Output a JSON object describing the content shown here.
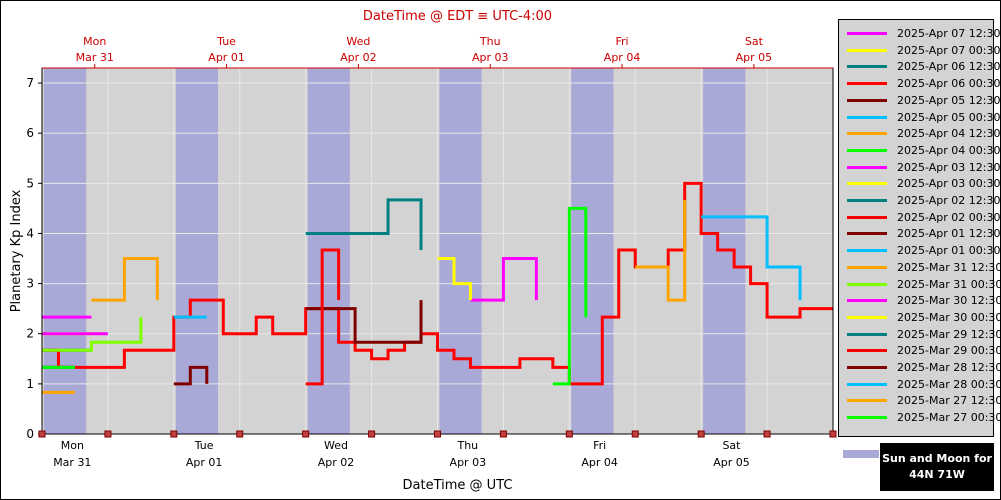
{
  "chart_data": {
    "type": "line",
    "title": "DateTime @ EDT ≡ UTC-4:00",
    "xlabel": "DateTime @ UTC",
    "ylabel": "Planetary Kp Index",
    "ylim": [
      0,
      7.3
    ],
    "yticks": [
      0,
      1,
      2,
      3,
      4,
      5,
      6,
      7
    ],
    "x_start": "2025-03-31 00:00",
    "x_end": "2025-04-06 00:00",
    "grid": true,
    "legend_position": "right",
    "top_ticks": [
      {
        "day": "Mon",
        "date": "Mar 31"
      },
      {
        "day": "Tue",
        "date": "Apr 01"
      },
      {
        "day": "Wed",
        "date": "Apr 02"
      },
      {
        "day": "Thu",
        "date": "Apr 03"
      },
      {
        "day": "Fri",
        "date": "Apr 04"
      },
      {
        "day": "Sat",
        "date": "Apr 05"
      }
    ],
    "bottom_ticks": [
      {
        "day": "Mon",
        "date": "Mar 31"
      },
      {
        "day": "Tue",
        "date": "Apr 01"
      },
      {
        "day": "Wed",
        "date": "Apr 02"
      },
      {
        "day": "Thu",
        "date": "Apr 03"
      },
      {
        "day": "Fri",
        "date": "Apr 04"
      },
      {
        "day": "Sat",
        "date": "Apr 05"
      }
    ],
    "series": [
      {
        "name": "2025-Apr 07 12:30",
        "color": "#ff00ff",
        "x": [
          "2025-03-31 00:00",
          "2025-03-31 09:00"
        ],
        "y": [
          2.33,
          2.33
        ]
      },
      {
        "name": "2025-Apr 07 00:30",
        "color": "#ffff00",
        "x": [
          "2025-03-31 00:00",
          "2025-03-31 09:00"
        ],
        "y": [
          2.0,
          2.0
        ]
      },
      {
        "name": "2025-Apr 06 12:30",
        "color": "#008080",
        "x": [
          "2025-03-31 00:00",
          "2025-03-31 09:00"
        ],
        "y": [
          1.67,
          1.67
        ]
      },
      {
        "name": "2025-Apr 06 00:30",
        "color": "#ff0000",
        "x": [
          "2025-03-31 00:00",
          "2025-03-31 03:00",
          "2025-03-31 06:00",
          "2025-03-31 09:00",
          "2025-03-31 12:00",
          "2025-03-31 15:00",
          "2025-03-31 18:00",
          "2025-03-31 21:00",
          "2025-04-01 00:00",
          "2025-04-01 03:00",
          "2025-04-01 06:00",
          "2025-04-01 09:00",
          "2025-04-01 12:00",
          "2025-04-01 15:00",
          "2025-04-01 18:00",
          "2025-04-01 21:00",
          "2025-04-02 00:00",
          "2025-04-02 03:00",
          "2025-04-02 06:00",
          "2025-04-02 09:00",
          "2025-04-02 12:00",
          "2025-04-02 15:00",
          "2025-04-02 18:00",
          "2025-04-02 21:00",
          "2025-04-03 00:00",
          "2025-04-03 03:00",
          "2025-04-03 06:00",
          "2025-04-03 09:00",
          "2025-04-03 12:00",
          "2025-04-03 15:00",
          "2025-04-03 18:00",
          "2025-04-03 21:00",
          "2025-04-04 00:00",
          "2025-04-04 03:00",
          "2025-04-04 06:00",
          "2025-04-04 09:00",
          "2025-04-04 12:00",
          "2025-04-04 15:00",
          "2025-04-04 18:00",
          "2025-04-04 21:00",
          "2025-04-05 00:00",
          "2025-04-05 03:00",
          "2025-04-05 06:00",
          "2025-04-05 09:00",
          "2025-04-05 12:00",
          "2025-04-05 15:00",
          "2025-04-05 18:00",
          "2025-04-05 21:00",
          "2025-04-06 00:00"
        ],
        "y": [
          1.67,
          1.33,
          1.33,
          1.33,
          1.33,
          1.67,
          1.67,
          1.67,
          2.33,
          2.67,
          2.67,
          2.0,
          2.0,
          2.33,
          2.0,
          2.0,
          2.5,
          2.5,
          1.83,
          1.67,
          1.5,
          1.67,
          1.83,
          2.0,
          1.67,
          1.5,
          1.33,
          1.33,
          1.33,
          1.5,
          1.5,
          1.33,
          1.0,
          1.0,
          2.33,
          3.67,
          3.33,
          3.33,
          3.67,
          5.0,
          4.0,
          3.67,
          3.33,
          3.0,
          2.33,
          2.33,
          2.5,
          2.5,
          2.5
        ]
      },
      {
        "name": "2025-Apr 05 12:30",
        "color": "#800000",
        "x": [
          "2025-04-02 00:00",
          "2025-04-02 09:00",
          "2025-04-02 21:00"
        ],
        "y": [
          2.5,
          1.83,
          2.67
        ]
      },
      {
        "name": "2025-Apr 05 00:30",
        "color": "#00bfff",
        "x": [
          "2025-04-05 00:00",
          "2025-04-05 12:00",
          "2025-04-05 18:00"
        ],
        "y": [
          4.33,
          3.33,
          2.67
        ]
      },
      {
        "name": "2025-Apr 04 12:30",
        "color": "#ffa500",
        "x": [
          "2025-04-04 12:00",
          "2025-04-04 18:00",
          "2025-04-04 21:00"
        ],
        "y": [
          3.33,
          2.67,
          4.67
        ]
      },
      {
        "name": "2025-Apr 04 00:30",
        "color": "#00ff00",
        "x": [
          "2025-04-03 21:00",
          "2025-04-04 00:00",
          "2025-04-04 03:00"
        ],
        "y": [
          1.0,
          4.5,
          2.33
        ]
      },
      {
        "name": "2025-Apr 03 12:30",
        "color": "#ff00ff",
        "x": [
          "2025-04-03 06:00",
          "2025-04-03 12:00",
          "2025-04-03 18:00"
        ],
        "y": [
          2.67,
          3.5,
          2.67
        ]
      },
      {
        "name": "2025-Apr 03 00:30",
        "color": "#ffff00",
        "x": [
          "2025-04-03 00:00",
          "2025-04-03 03:00",
          "2025-04-03 06:00"
        ],
        "y": [
          3.5,
          3.0,
          2.67
        ]
      },
      {
        "name": "2025-Apr 02 12:30",
        "color": "#008080",
        "x": [
          "2025-04-02 00:00",
          "2025-04-02 15:00",
          "2025-04-02 21:00"
        ],
        "y": [
          4.0,
          4.67,
          3.67
        ]
      },
      {
        "name": "2025-Apr 02 00:30",
        "color": "#ff0000",
        "x": [
          "2025-04-02 00:00",
          "2025-04-02 03:00",
          "2025-04-02 06:00"
        ],
        "y": [
          1.0,
          3.67,
          2.67
        ]
      },
      {
        "name": "2025-Apr 01 12:30",
        "color": "#800000",
        "x": [
          "2025-04-01 00:00",
          "2025-04-01 03:00",
          "2025-04-01 06:00"
        ],
        "y": [
          1.0,
          1.33,
          1.0
        ]
      },
      {
        "name": "2025-Apr 01 00:30",
        "color": "#00bfff",
        "x": [
          "2025-04-01 00:00",
          "2025-04-01 06:00"
        ],
        "y": [
          2.33,
          2.33
        ]
      },
      {
        "name": "2025-Mar 31 12:30",
        "color": "#ffa500",
        "x": [
          "2025-03-31 09:00",
          "2025-03-31 15:00",
          "2025-03-31 21:00"
        ],
        "y": [
          2.67,
          3.5,
          2.67
        ]
      },
      {
        "name": "2025-Mar 31 00:30",
        "color": "#80ff00",
        "x": [
          "2025-03-31 00:00",
          "2025-03-31 09:00",
          "2025-03-31 18:00"
        ],
        "y": [
          1.67,
          1.83,
          2.33
        ]
      },
      {
        "name": "2025-Mar 30 12:30",
        "color": "#ff00ff",
        "x": [
          "2025-03-31 00:00",
          "2025-03-31 12:00"
        ],
        "y": [
          2.0,
          2.0
        ]
      },
      {
        "name": "2025-Mar 30 00:30",
        "color": "#ffff00",
        "x": [
          "2025-03-31 00:00",
          "2025-03-31 06:00"
        ],
        "y": [
          1.33,
          1.33
        ]
      },
      {
        "name": "2025-Mar 29 12:30",
        "color": "#008080",
        "x": [
          "2025-03-31 00:00",
          "2025-03-31 06:00"
        ],
        "y": [
          1.33,
          1.33
        ]
      },
      {
        "name": "2025-Mar 29 00:30",
        "color": "#ff0000",
        "x": [
          "2025-03-31 00:00",
          "2025-03-31 06:00"
        ],
        "y": [
          1.33,
          1.33
        ]
      },
      {
        "name": "2025-Mar 28 12:30",
        "color": "#800000",
        "x": [
          "2025-03-31 00:00",
          "2025-03-31 06:00"
        ],
        "y": [
          1.33,
          1.33
        ]
      },
      {
        "name": "2025-Mar 28 00:30",
        "color": "#00bfff",
        "x": [
          "2025-03-31 00:00",
          "2025-03-31 06:00"
        ],
        "y": [
          1.33,
          1.33
        ]
      },
      {
        "name": "2025-Mar 27 12:30",
        "color": "#ffa500",
        "x": [
          "2025-03-31 00:00",
          "2025-03-31 06:00"
        ],
        "y": [
          0.83,
          0.83
        ]
      },
      {
        "name": "2025-Mar 27 00:30",
        "color": "#00ff00",
        "x": [
          "2025-03-31 00:00",
          "2025-03-31 06:00"
        ],
        "y": [
          1.33,
          1.33
        ]
      }
    ]
  },
  "legend": {
    "items": [
      {
        "label": "2025-Apr 07 12:30",
        "color": "#ff00ff"
      },
      {
        "label": "2025-Apr 07 00:30",
        "color": "#ffff00"
      },
      {
        "label": "2025-Apr 06 12:30",
        "color": "#008080"
      },
      {
        "label": "2025-Apr 06 00:30",
        "color": "#ff0000"
      },
      {
        "label": "2025-Apr 05 12:30",
        "color": "#800000"
      },
      {
        "label": "2025-Apr 05 00:30",
        "color": "#00bfff"
      },
      {
        "label": "2025-Apr 04 12:30",
        "color": "#ffa500"
      },
      {
        "label": "2025-Apr 04 00:30",
        "color": "#00ff00"
      },
      {
        "label": "2025-Apr 03 12:30",
        "color": "#ff00ff"
      },
      {
        "label": "2025-Apr 03 00:30",
        "color": "#ffff00"
      },
      {
        "label": "2025-Apr 02 12:30",
        "color": "#008080"
      },
      {
        "label": "2025-Apr 02 00:30",
        "color": "#ff0000"
      },
      {
        "label": "2025-Apr 01 12:30",
        "color": "#800000"
      },
      {
        "label": "2025-Apr 01 00:30",
        "color": "#00bfff"
      },
      {
        "label": "2025-Mar 31 12:30",
        "color": "#ffa500"
      },
      {
        "label": "2025-Mar 31 00:30",
        "color": "#80ff00"
      },
      {
        "label": "2025-Mar 30 12:30",
        "color": "#ff00ff"
      },
      {
        "label": "2025-Mar 30 00:30",
        "color": "#ffff00"
      },
      {
        "label": "2025-Mar 29 12:30",
        "color": "#008080"
      },
      {
        "label": "2025-Mar 29 00:30",
        "color": "#ff0000"
      },
      {
        "label": "2025-Mar 28 12:30",
        "color": "#800000"
      },
      {
        "label": "2025-Mar 28 00:30",
        "color": "#00bfff"
      },
      {
        "label": "2025-Mar 27 12:30",
        "color": "#ffa500"
      },
      {
        "label": "2025-Mar 27 00:30",
        "color": "#00ff00"
      }
    ]
  },
  "sun_moon": {
    "line1": "Sun and Moon for",
    "line2": "44N 71W"
  },
  "colors": {
    "plot_bg": "#d3d3d3",
    "night_band": "#a9a9d8",
    "axis_red": "#cc0000",
    "grid": "#e8e8e8"
  }
}
